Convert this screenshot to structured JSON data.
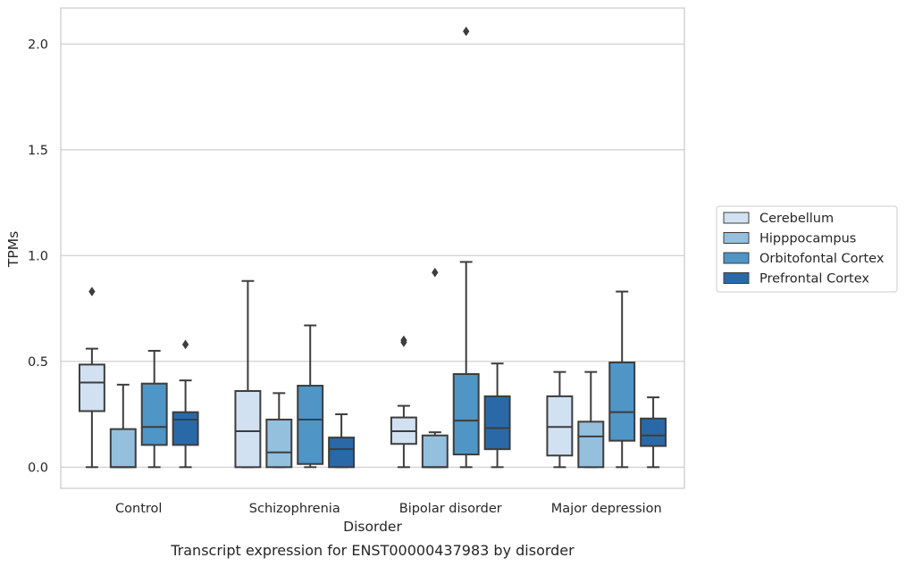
{
  "chart_data": {
    "type": "box",
    "title": "",
    "caption": "Transcript expression for ENST00000437983 by disorder",
    "xlabel": "Disorder",
    "ylabel": "TPMs",
    "ylim": [
      -0.1,
      2.17
    ],
    "yticks": [
      0.0,
      0.5,
      1.0,
      1.5,
      2.0
    ],
    "ytick_labels": [
      "0.0",
      "0.5",
      "1.0",
      "1.5",
      "2.0"
    ],
    "grid": "horizontal",
    "legend_position": "right",
    "categories": [
      "Control",
      "Schizophrenia",
      "Bipolar disorder",
      "Major depression"
    ],
    "series": [
      {
        "name": "Cerebellum",
        "color": "#d1e1f1",
        "boxes": [
          {
            "whisker_low": 0.0,
            "q1": 0.265,
            "median": 0.4,
            "q3": 0.485,
            "whisker_high": 0.56,
            "outliers": [
              0.83
            ]
          },
          {
            "whisker_low": 0.0,
            "q1": 0.0,
            "median": 0.17,
            "q3": 0.36,
            "whisker_high": 0.88,
            "outliers": []
          },
          {
            "whisker_low": 0.0,
            "q1": 0.11,
            "median": 0.17,
            "q3": 0.235,
            "whisker_high": 0.29,
            "outliers": [
              0.59,
              0.6
            ]
          },
          {
            "whisker_low": 0.0,
            "q1": 0.055,
            "median": 0.19,
            "q3": 0.335,
            "whisker_high": 0.45,
            "outliers": []
          }
        ]
      },
      {
        "name": "Hipppocampus",
        "color": "#94c0dd",
        "boxes": [
          {
            "whisker_low": 0.0,
            "q1": 0.0,
            "median": 0.0,
            "q3": 0.18,
            "whisker_high": 0.39,
            "outliers": []
          },
          {
            "whisker_low": 0.0,
            "q1": 0.0,
            "median": 0.07,
            "q3": 0.225,
            "whisker_high": 0.35,
            "outliers": []
          },
          {
            "whisker_low": 0.0,
            "q1": 0.0,
            "median": 0.0,
            "q3": 0.15,
            "whisker_high": 0.165,
            "outliers": [
              0.92
            ]
          },
          {
            "whisker_low": 0.0,
            "q1": 0.0,
            "median": 0.145,
            "q3": 0.215,
            "whisker_high": 0.45,
            "outliers": []
          }
        ]
      },
      {
        "name": "Orbitofontal Cortex",
        "color": "#4f95c6",
        "boxes": [
          {
            "whisker_low": 0.0,
            "q1": 0.105,
            "median": 0.19,
            "q3": 0.395,
            "whisker_high": 0.55,
            "outliers": []
          },
          {
            "whisker_low": 0.0,
            "q1": 0.015,
            "median": 0.225,
            "q3": 0.385,
            "whisker_high": 0.67,
            "outliers": []
          },
          {
            "whisker_low": 0.0,
            "q1": 0.06,
            "median": 0.22,
            "q3": 0.44,
            "whisker_high": 0.97,
            "outliers": [
              2.06
            ]
          },
          {
            "whisker_low": 0.0,
            "q1": 0.125,
            "median": 0.26,
            "q3": 0.495,
            "whisker_high": 0.83,
            "outliers": []
          }
        ]
      },
      {
        "name": "Prefrontal Cortex",
        "color": "#2a69a8",
        "boxes": [
          {
            "whisker_low": 0.0,
            "q1": 0.105,
            "median": 0.225,
            "q3": 0.26,
            "whisker_high": 0.41,
            "outliers": [
              0.58
            ]
          },
          {
            "whisker_low": 0.0,
            "q1": 0.0,
            "median": 0.085,
            "q3": 0.14,
            "whisker_high": 0.25,
            "outliers": []
          },
          {
            "whisker_low": 0.0,
            "q1": 0.085,
            "median": 0.185,
            "q3": 0.335,
            "whisker_high": 0.49,
            "outliers": []
          },
          {
            "whisker_low": 0.0,
            "q1": 0.1,
            "median": 0.15,
            "q3": 0.23,
            "whisker_high": 0.33,
            "outliers": []
          }
        ]
      }
    ]
  }
}
